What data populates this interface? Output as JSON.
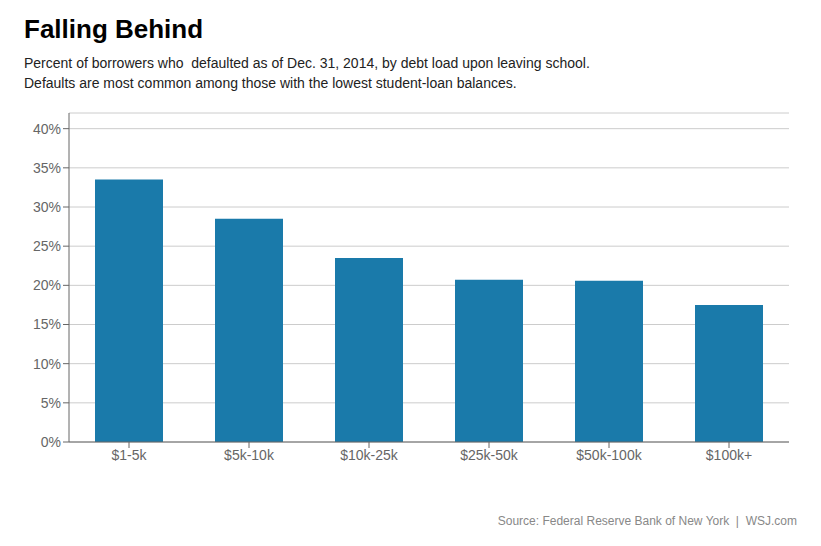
{
  "chart_data": {
    "type": "bar",
    "title": "Falling Behind",
    "subtitle": [
      "Percent of borrowers who  defaulted as of Dec. 31, 2014, by debt load upon leaving school.",
      "Defaults are most common among those with the lowest student-loan balances."
    ],
    "annotations": [
      "Source: Federal Reserve Bank of New York  |  WSJ.com"
    ],
    "categories": [
      "$1-5k",
      "$5k-10k",
      "$10k-25k",
      "$25k-50k",
      "$50k-100k",
      "$100k+"
    ],
    "values": [
      33.5,
      28.5,
      23.5,
      20.7,
      20.6,
      17.5
    ],
    "color": "#1a7aaa",
    "ylim": [
      0,
      42
    ],
    "yticks": [
      {
        "value": 0,
        "label": "0%"
      },
      {
        "value": 5,
        "label": "5%"
      },
      {
        "value": 10,
        "label": "10%"
      },
      {
        "value": 15,
        "label": "15%"
      },
      {
        "value": 20,
        "label": "20%"
      },
      {
        "value": 25,
        "label": "25%"
      },
      {
        "value": 30,
        "label": "30%"
      },
      {
        "value": 35,
        "label": "35%"
      },
      {
        "value": 40,
        "label": "40%"
      }
    ],
    "grid": true
  }
}
